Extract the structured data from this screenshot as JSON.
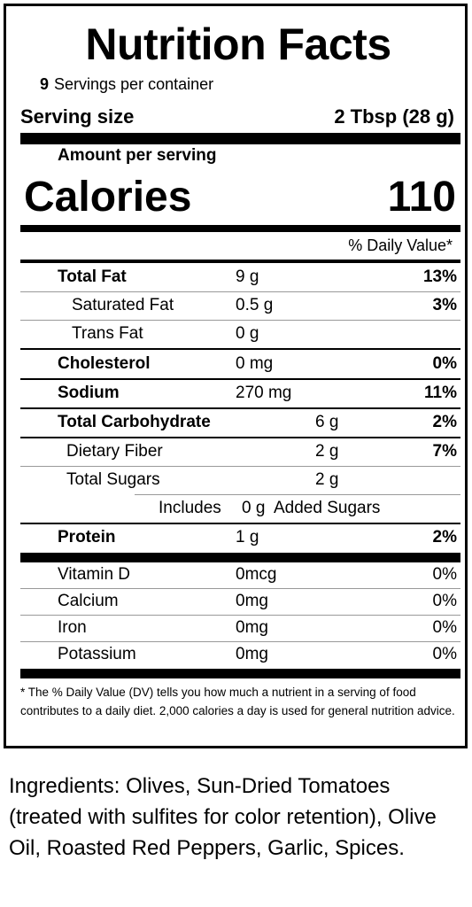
{
  "label": {
    "title": "Nutrition Facts",
    "servings_count": "9",
    "servings_text": "Servings per container",
    "serving_size_label": "Serving size",
    "serving_size_value": "2 Tbsp (28 g)",
    "amount_per_serving": "Amount per serving",
    "calories_label": "Calories",
    "calories_value": "110",
    "dv_header": "% Daily Value*"
  },
  "nutrients": {
    "total_fat": {
      "name": "Total Fat",
      "amount": "9 g",
      "dv": "13%"
    },
    "saturated_fat": {
      "name": "Saturated Fat",
      "amount": "0.5 g",
      "dv": "3%"
    },
    "trans_fat": {
      "name": "Trans Fat",
      "amount": "0 g"
    },
    "cholesterol": {
      "name": "Cholesterol",
      "amount": "0 mg",
      "dv": "0%"
    },
    "sodium": {
      "name": "Sodium",
      "amount": "270 mg",
      "dv": "11%"
    },
    "total_carb": {
      "name": "Total Carbohydrate",
      "amount": "6 g",
      "dv": "2%"
    },
    "dietary_fiber": {
      "name": "Dietary Fiber",
      "amount": "2 g",
      "dv": "7%"
    },
    "total_sugars": {
      "name": "Total Sugars",
      "amount": "2 g"
    },
    "added_sugars": {
      "prefix": "Includes",
      "amount": "0 g",
      "suffix": "Added Sugars"
    },
    "protein": {
      "name": "Protein",
      "amount": "1 g",
      "dv": "2%"
    }
  },
  "vitamins": {
    "vitamin_d": {
      "name": "Vitamin D",
      "amount": "0mcg",
      "dv": "0%"
    },
    "calcium": {
      "name": "Calcium",
      "amount": "0mg",
      "dv": "0%"
    },
    "iron": {
      "name": "Iron",
      "amount": "0mg",
      "dv": "0%"
    },
    "potassium": {
      "name": "Potassium",
      "amount": "0mg",
      "dv": "0%"
    }
  },
  "footnote": "* The % Daily Value (DV) tells you how much a nutrient in a serving of food contributes to a daily diet.  2,000 calories a day is used for general nutrition advice.",
  "ingredients": "Ingredients: Olives, Sun-Dried Tomatoes (treated with sulfites for color retention), Olive Oil, Roasted Red Peppers, Garlic, Spices."
}
